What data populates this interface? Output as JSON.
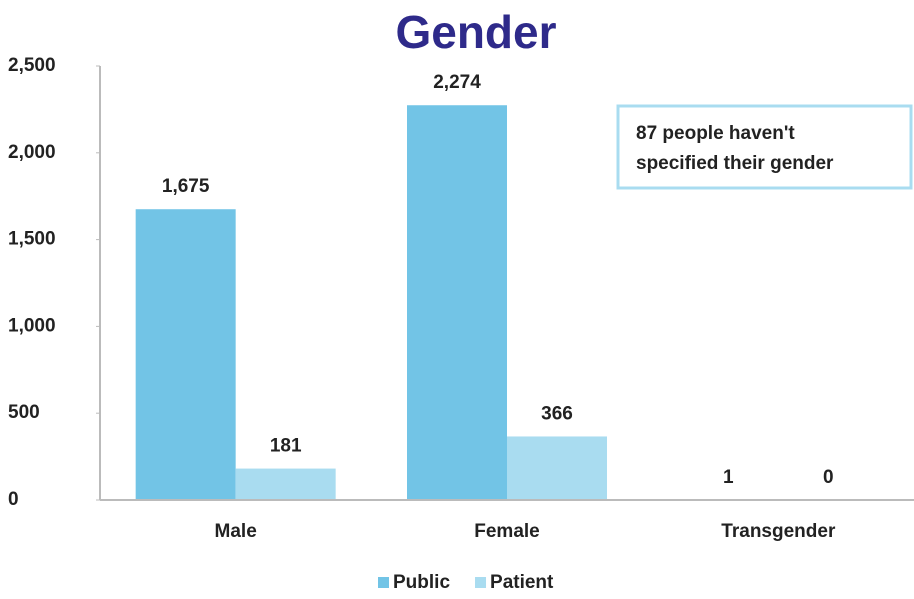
{
  "chart_data": {
    "type": "bar",
    "title": "Gender",
    "categories": [
      "Male",
      "Female",
      "Transgender"
    ],
    "series": [
      {
        "name": "Public",
        "color": "#72c4e6",
        "values": [
          1675,
          2274,
          1
        ],
        "value_labels": [
          "1,675",
          "2,274",
          "1"
        ]
      },
      {
        "name": "Patient",
        "color": "#a9dcf0",
        "values": [
          181,
          366,
          0
        ],
        "value_labels": [
          "181",
          "366",
          "0"
        ]
      }
    ],
    "ylim": [
      0,
      2500
    ],
    "yticks": [
      0,
      500,
      {
        "value": 1000,
        "label": "1,000"
      },
      {
        "value": 1500,
        "label": "1,500"
      },
      {
        "value": 2000,
        "label": "2,000"
      },
      {
        "value": 2500,
        "label": "2,500"
      }
    ],
    "annotation": [
      "87 people haven't",
      "specified their gender"
    ],
    "legend": "bottom"
  }
}
